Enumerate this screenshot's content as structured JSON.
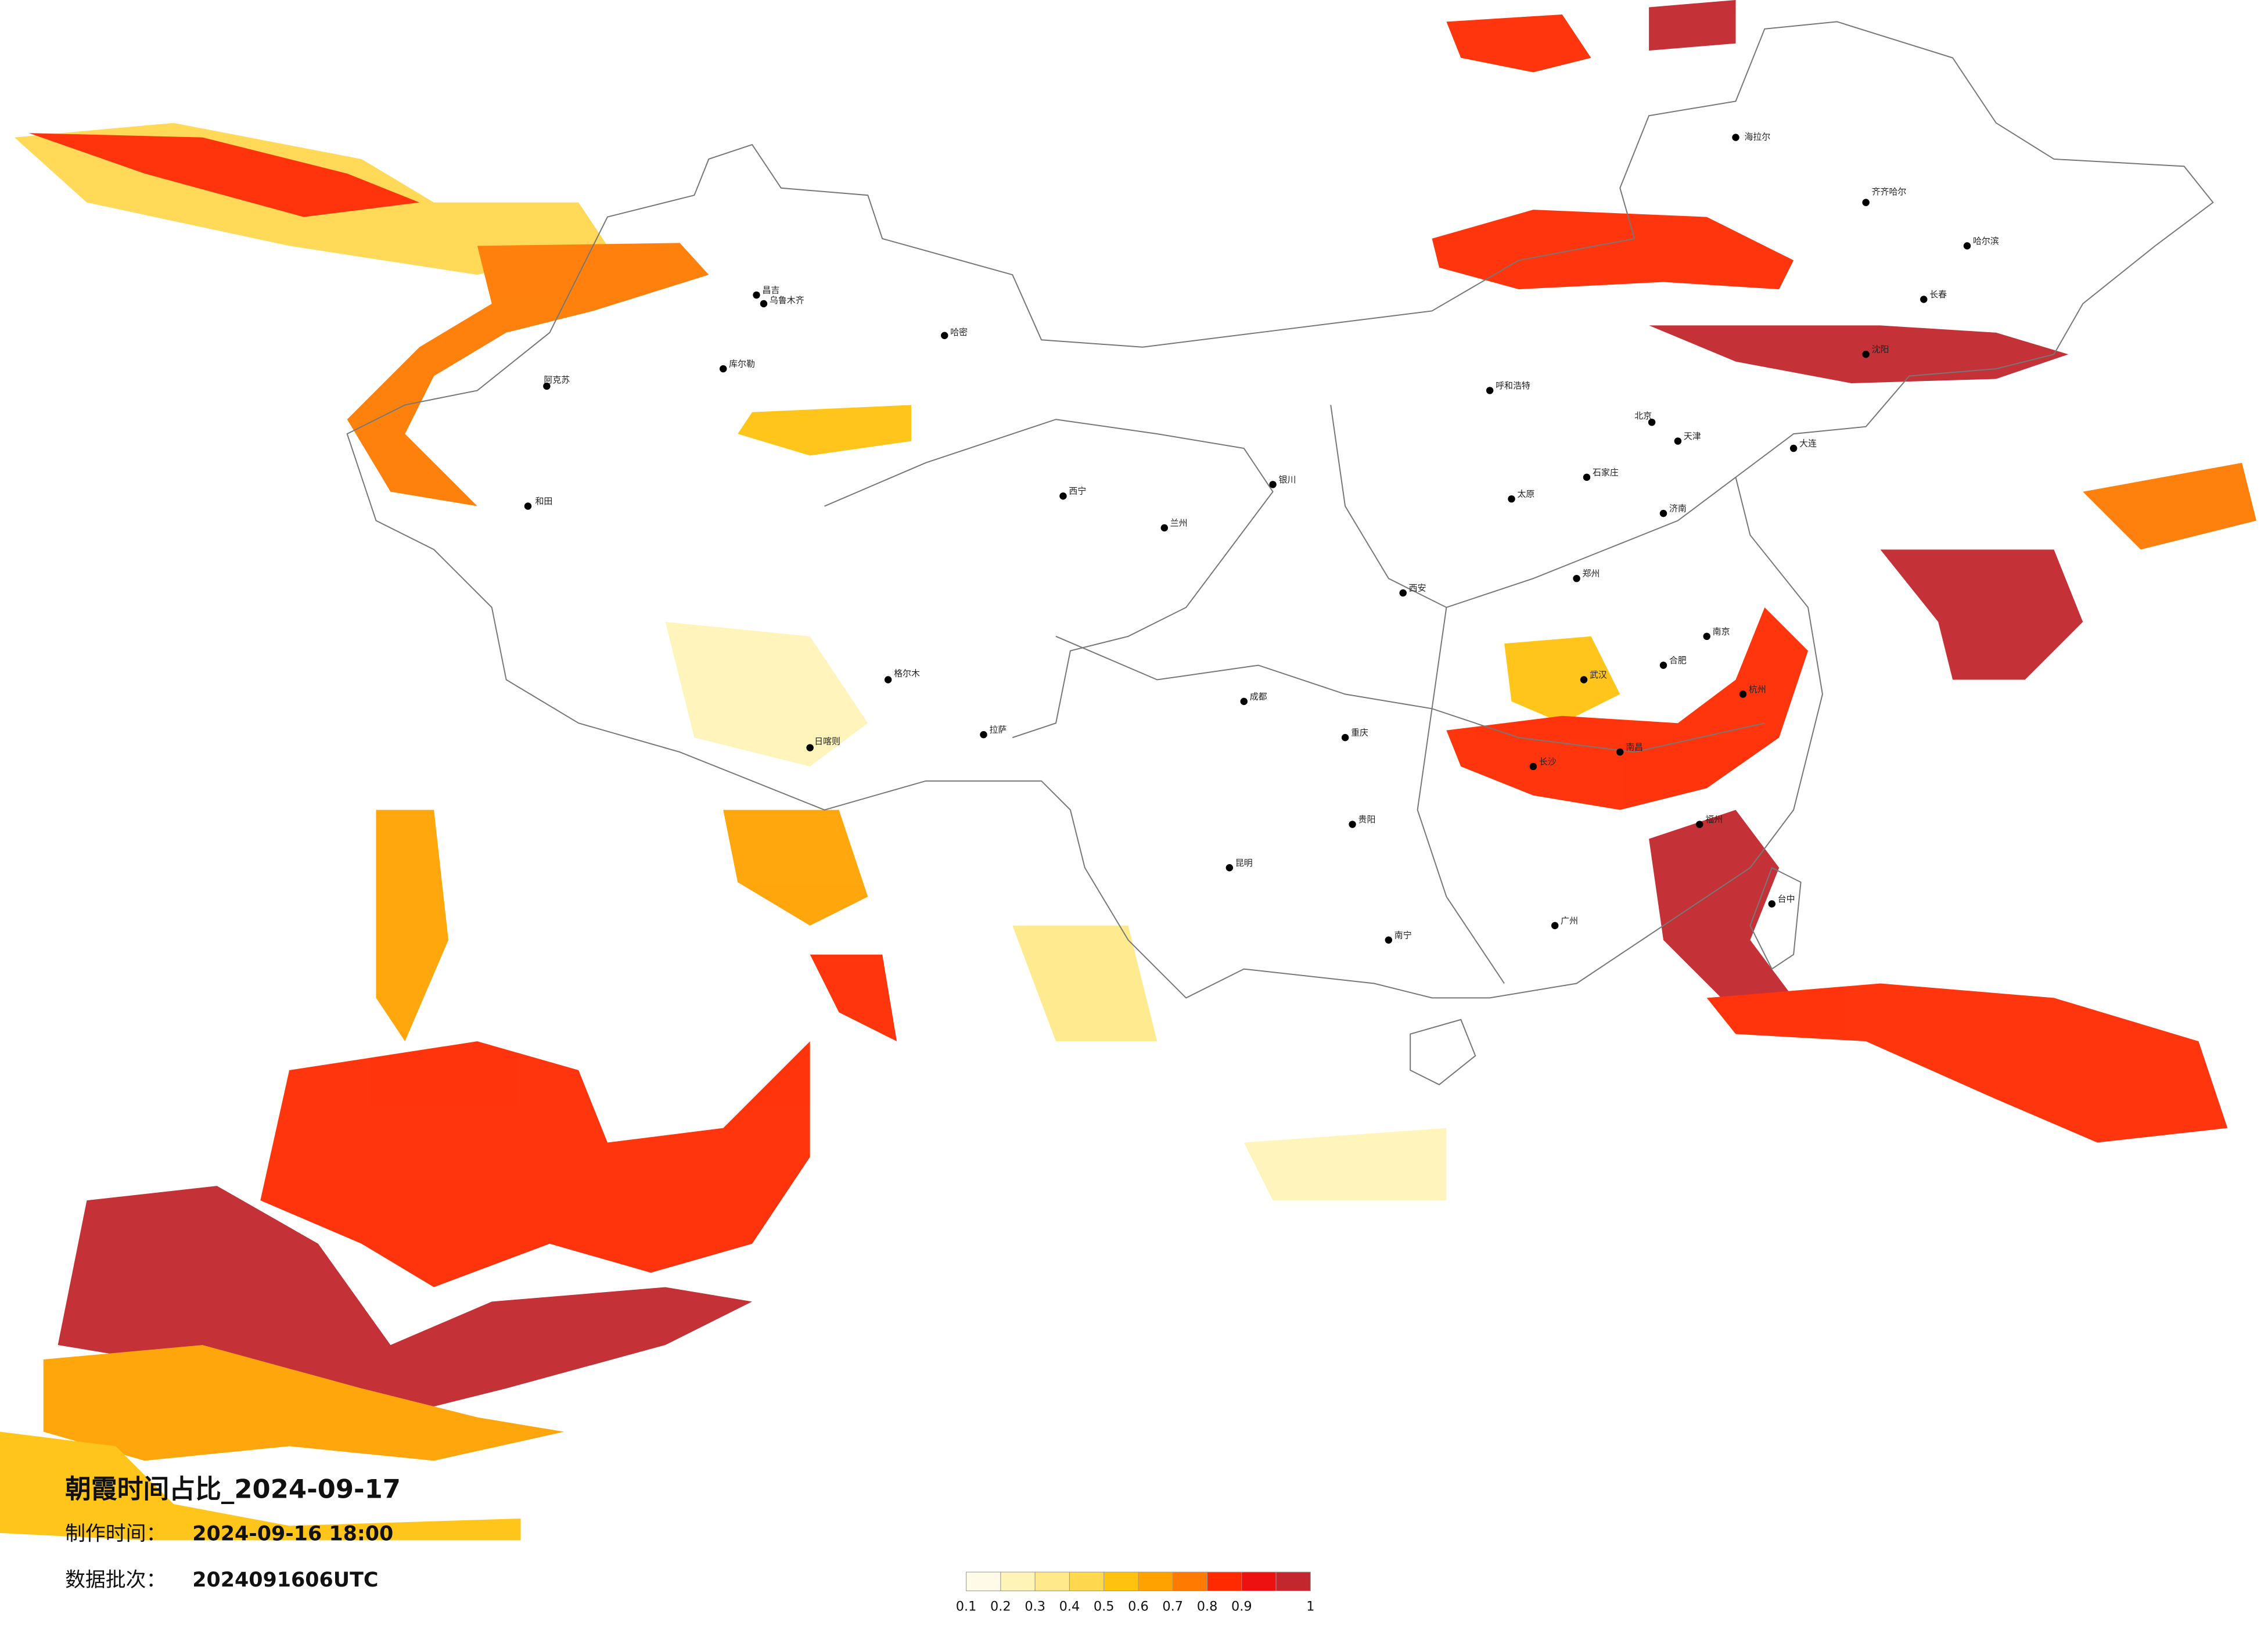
{
  "map": {
    "title": "朝霞时间占比_2024-09-17",
    "made_time_label": "制作时间：",
    "made_time": "2024-09-16 18:00",
    "batch_label": "数据批次：",
    "batch": "2024091606UTC",
    "colorbar": {
      "ticks": [
        0.1,
        0.2,
        0.3,
        0.4,
        0.5,
        0.6,
        0.7,
        0.8,
        0.9,
        1
      ],
      "colors": [
        "#fffbe8",
        "#fff4b8",
        "#ffe98a",
        "#ffd84f",
        "#ffc20e",
        "#ffa200",
        "#ff7a00",
        "#ff2a00",
        "#ee1111",
        "#c1272d"
      ]
    },
    "cities": [
      "乌鲁木齐",
      "哈密",
      "昌吉",
      "库尔勒",
      "阿克苏",
      "和田",
      "格尔木",
      "拉萨",
      "日喀则",
      "西宁",
      "兰州",
      "银川",
      "呼和浩特",
      "北京",
      "天津",
      "石家庄",
      "太原",
      "济南",
      "郑州",
      "西安",
      "成都",
      "重庆",
      "贵阳",
      "昆明",
      "南宁",
      "广州",
      "长沙",
      "武汉",
      "南昌",
      "合肥",
      "南京",
      "杭州",
      "福州",
      "哈尔滨",
      "长春",
      "沈阳",
      "大连",
      "齐齐哈尔",
      "海拉尔",
      "台中"
    ]
  }
}
